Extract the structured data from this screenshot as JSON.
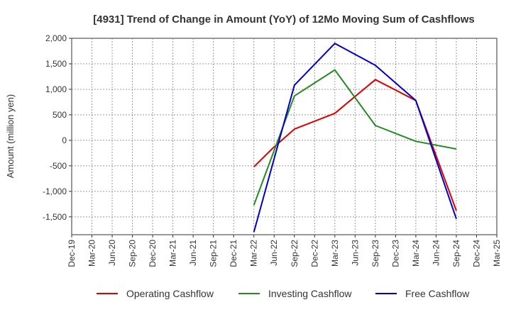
{
  "chart_data": {
    "type": "line",
    "title": "[4931]  Trend of Change in Amount (YoY) of 12Mo Moving Sum of Cashflows",
    "xlabel": "",
    "ylabel": "Amount (million yen)",
    "ylim": [
      -1850,
      2000
    ],
    "yticks": [
      2000,
      1500,
      1000,
      500,
      0,
      -500,
      -1000,
      -1500
    ],
    "ytick_labels": [
      "2,000",
      "1,500",
      "1,000",
      "500",
      "0",
      "-500",
      "-1,000",
      "-1,500"
    ],
    "categories": [
      "Dec-19",
      "Mar-20",
      "Jun-20",
      "Sep-20",
      "Dec-20",
      "Mar-21",
      "Jun-21",
      "Sep-21",
      "Dec-21",
      "Mar-22",
      "Jun-22",
      "Sep-22",
      "Dec-22",
      "Mar-23",
      "Jun-23",
      "Sep-23",
      "Dec-23",
      "Mar-24",
      "Jun-24",
      "Sep-24",
      "Dec-24",
      "Mar-25"
    ],
    "grid": true,
    "legend_position": "bottom",
    "series": [
      {
        "name": "Operating Cashflow",
        "color": "#dd0000",
        "values": [
          null,
          null,
          null,
          null,
          null,
          null,
          null,
          null,
          null,
          -520,
          -130,
          220,
          null,
          530,
          null,
          1190,
          null,
          780,
          null,
          -1380,
          null,
          null
        ]
      },
      {
        "name": "Investing Cashflow",
        "color": "#228b22",
        "values": [
          null,
          null,
          null,
          null,
          null,
          null,
          null,
          null,
          null,
          -1270,
          null,
          870,
          null,
          1380,
          null,
          290,
          null,
          -20,
          null,
          -170,
          null,
          null
        ]
      },
      {
        "name": "Free Cashflow",
        "color": "#0000cc",
        "values": [
          null,
          null,
          null,
          null,
          null,
          null,
          null,
          null,
          null,
          -1800,
          null,
          1080,
          null,
          1900,
          null,
          1470,
          null,
          780,
          null,
          -1540,
          null,
          null
        ]
      }
    ]
  }
}
